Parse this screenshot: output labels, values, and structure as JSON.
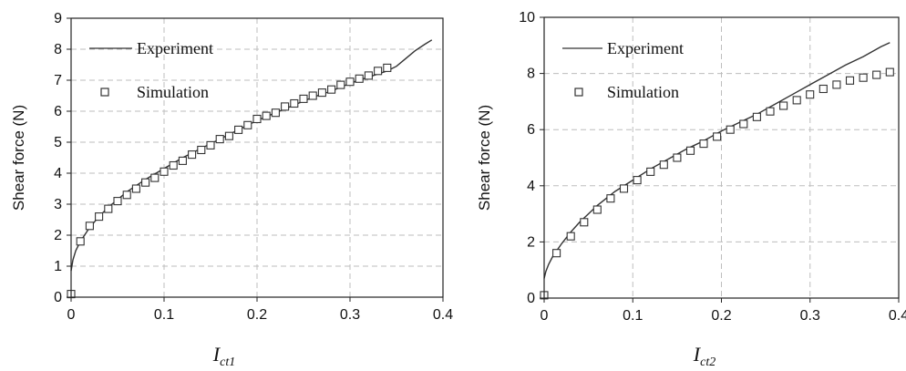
{
  "chart_data": [
    {
      "type": "line",
      "ylabel": "Shear force (N)",
      "xlabel_main": "I",
      "xlabel_sub": "ct1",
      "xlim": [
        0,
        0.4
      ],
      "ylim": [
        0,
        9
      ],
      "x_ticks": [
        "0",
        "0.1",
        "0.2",
        "0.3",
        "0.4"
      ],
      "y_ticks": [
        "0",
        "1",
        "2",
        "3",
        "4",
        "5",
        "6",
        "7",
        "8",
        "9"
      ],
      "grid": true,
      "legend_position": "top-left",
      "series": [
        {
          "name": "Experiment",
          "style": "line",
          "color": "#333333",
          "x": [
            0,
            0.002,
            0.005,
            0.01,
            0.02,
            0.03,
            0.04,
            0.05,
            0.06,
            0.08,
            0.1,
            0.12,
            0.14,
            0.16,
            0.18,
            0.2,
            0.22,
            0.24,
            0.26,
            0.28,
            0.3,
            0.32,
            0.34,
            0.35,
            0.36,
            0.37,
            0.38,
            0.388
          ],
          "y": [
            0.85,
            1.2,
            1.5,
            1.8,
            2.25,
            2.6,
            2.9,
            3.15,
            3.4,
            3.8,
            4.15,
            4.5,
            4.8,
            5.1,
            5.4,
            5.7,
            5.95,
            6.2,
            6.45,
            6.65,
            6.9,
            7.1,
            7.3,
            7.45,
            7.7,
            7.95,
            8.15,
            8.3
          ]
        },
        {
          "name": "Simulation",
          "style": "markers",
          "marker": "square",
          "x": [
            0,
            0.01,
            0.02,
            0.03,
            0.04,
            0.05,
            0.06,
            0.07,
            0.08,
            0.09,
            0.1,
            0.11,
            0.12,
            0.13,
            0.14,
            0.15,
            0.16,
            0.17,
            0.18,
            0.19,
            0.2,
            0.21,
            0.22,
            0.23,
            0.24,
            0.25,
            0.26,
            0.27,
            0.28,
            0.29,
            0.3,
            0.31,
            0.32,
            0.33,
            0.34
          ],
          "y": [
            0.1,
            1.8,
            2.3,
            2.6,
            2.85,
            3.1,
            3.3,
            3.5,
            3.7,
            3.85,
            4.05,
            4.25,
            4.4,
            4.6,
            4.75,
            4.9,
            5.1,
            5.2,
            5.4,
            5.55,
            5.75,
            5.85,
            5.95,
            6.15,
            6.25,
            6.4,
            6.5,
            6.6,
            6.7,
            6.85,
            6.95,
            7.05,
            7.15,
            7.3,
            7.4
          ]
        }
      ]
    },
    {
      "type": "line",
      "ylabel": "Shear force (N)",
      "xlabel_main": "I",
      "xlabel_sub": "ct2",
      "xlim": [
        0,
        0.4
      ],
      "ylim": [
        0,
        10
      ],
      "x_ticks": [
        "0",
        "0.1",
        "0.2",
        "0.3",
        "0.4"
      ],
      "y_ticks": [
        "0",
        "2",
        "4",
        "6",
        "8",
        "10"
      ],
      "grid": true,
      "legend_position": "top-left",
      "series": [
        {
          "name": "Experiment",
          "style": "line",
          "color": "#333333",
          "x": [
            0,
            0.002,
            0.005,
            0.01,
            0.02,
            0.03,
            0.04,
            0.05,
            0.06,
            0.08,
            0.1,
            0.12,
            0.14,
            0.16,
            0.18,
            0.2,
            0.22,
            0.24,
            0.26,
            0.28,
            0.3,
            0.32,
            0.34,
            0.36,
            0.38,
            0.39
          ],
          "y": [
            0.7,
            0.95,
            1.2,
            1.5,
            1.95,
            2.35,
            2.7,
            3.0,
            3.3,
            3.8,
            4.2,
            4.6,
            4.95,
            5.3,
            5.6,
            5.95,
            6.25,
            6.55,
            6.9,
            7.25,
            7.6,
            7.95,
            8.3,
            8.6,
            8.95,
            9.1
          ]
        },
        {
          "name": "Simulation",
          "style": "markers",
          "marker": "square",
          "x": [
            0,
            0.014,
            0.03,
            0.045,
            0.06,
            0.075,
            0.09,
            0.105,
            0.12,
            0.135,
            0.15,
            0.165,
            0.18,
            0.195,
            0.21,
            0.225,
            0.24,
            0.255,
            0.27,
            0.285,
            0.3,
            0.315,
            0.33,
            0.345,
            0.36,
            0.375,
            0.39
          ],
          "y": [
            0.1,
            1.6,
            2.2,
            2.7,
            3.15,
            3.55,
            3.9,
            4.2,
            4.5,
            4.75,
            5.0,
            5.25,
            5.5,
            5.75,
            6.0,
            6.2,
            6.45,
            6.65,
            6.85,
            7.05,
            7.25,
            7.45,
            7.6,
            7.75,
            7.85,
            7.95,
            8.05
          ]
        }
      ]
    }
  ]
}
